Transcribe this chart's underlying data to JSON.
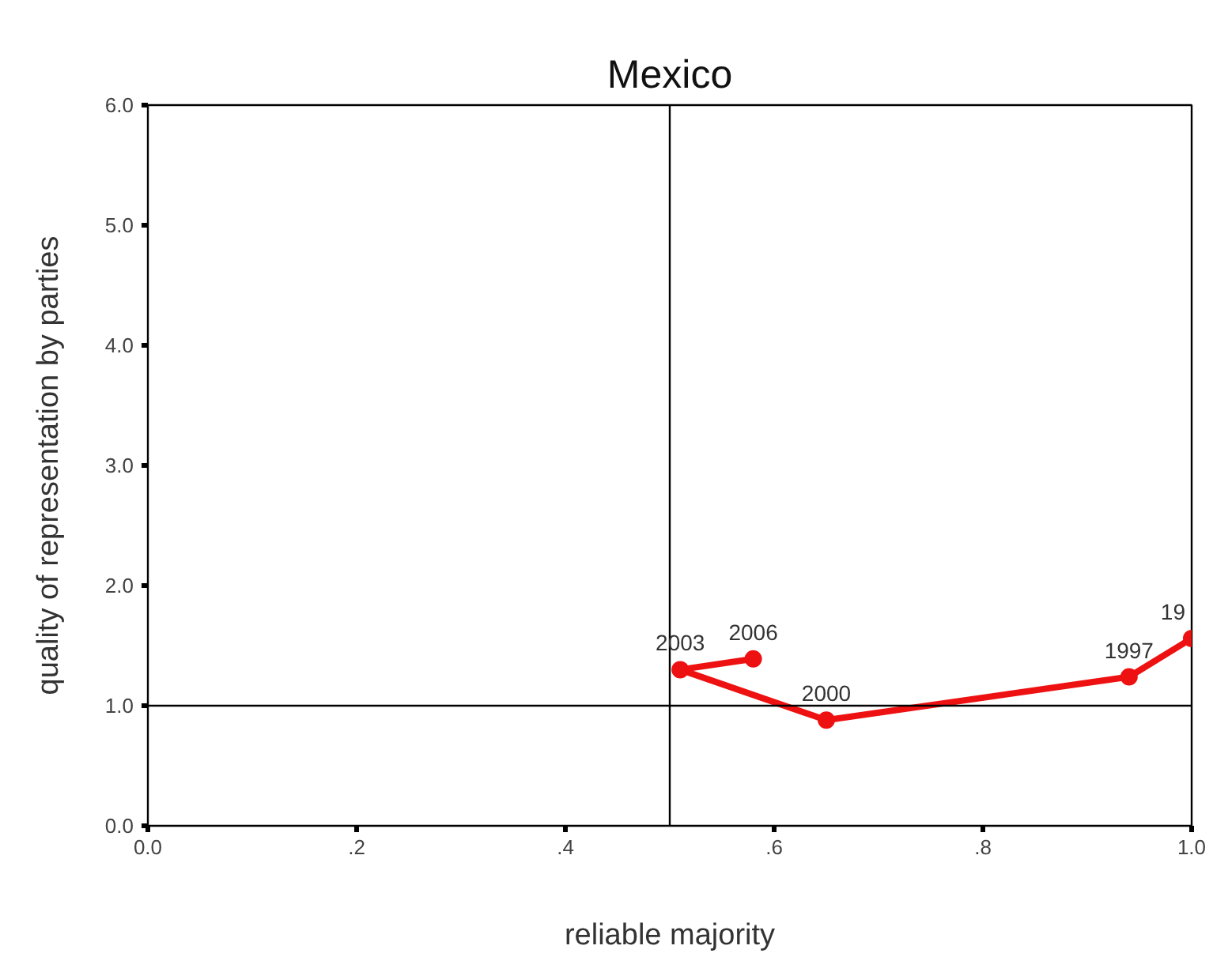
{
  "chart_data": {
    "type": "line",
    "title": "Mexico",
    "xlabel": "reliable majority",
    "ylabel": "quality of representation by parties",
    "x": [
      1.0,
      0.94,
      0.65,
      0.51,
      0.58
    ],
    "values": [
      1.56,
      1.24,
      0.88,
      1.3,
      1.39
    ],
    "color": "#ee1111",
    "marker": "circle",
    "line_style": "solid",
    "xlim": [
      0,
      1
    ],
    "ylim": [
      0,
      6
    ],
    "xticks": [
      {
        "value": 0,
        "label": "0.0"
      },
      {
        "value": 0.2,
        "label": ".2"
      },
      {
        "value": 0.4,
        "label": ".4"
      },
      {
        "value": 0.6,
        "label": ".6"
      },
      {
        "value": 0.8,
        "label": ".8"
      },
      {
        "value": 1.0,
        "label": "1.0"
      }
    ],
    "yticks": [
      {
        "value": 0,
        "label": "0.0"
      },
      {
        "value": 1,
        "label": "1.0"
      },
      {
        "value": 2,
        "label": "2.0"
      },
      {
        "value": 3,
        "label": "3.0"
      },
      {
        "value": 4,
        "label": "4.0"
      },
      {
        "value": 5,
        "label": "5.0"
      },
      {
        "value": 6,
        "label": "6.0"
      }
    ],
    "ref_lines": [
      {
        "axis": "x",
        "value": 0.5,
        "color": "#000000"
      },
      {
        "axis": "y",
        "value": 1.0,
        "color": "#000000"
      }
    ],
    "annotations": [
      {
        "text": "19",
        "x": 1.0,
        "y": 1.56
      },
      {
        "text": "1997",
        "x": 0.94,
        "y": 1.24
      },
      {
        "text": "2000",
        "x": 0.65,
        "y": 0.88
      },
      {
        "text": "2003",
        "x": 0.51,
        "y": 1.3
      },
      {
        "text": "2006",
        "x": 0.58,
        "y": 1.39
      }
    ],
    "grid": false
  }
}
